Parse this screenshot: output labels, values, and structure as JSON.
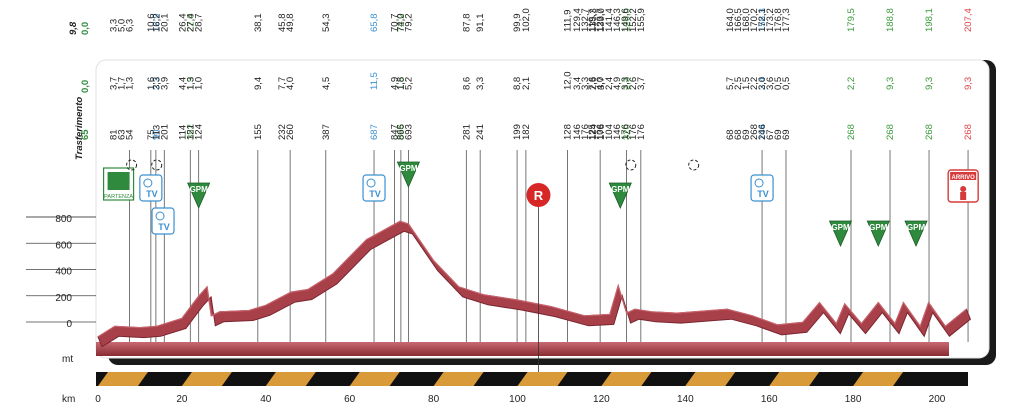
{
  "chart_data": {
    "type": "area",
    "title": "",
    "xlabel": "km",
    "ylabel": "mt",
    "xlim": [
      0,
      207.4
    ],
    "ylim": [
      0,
      1000
    ],
    "x_ticks": [
      "0",
      "20",
      "40",
      "60",
      "80",
      "100",
      "120",
      "140",
      "160",
      "180",
      "200"
    ],
    "y_ticks": [
      "0",
      "200",
      "400",
      "600",
      "800"
    ],
    "header_labels": {
      "first_col_bottom": "65",
      "first_col_mid": "0,0",
      "first_col_top": "0,0",
      "col0_top": "9,8",
      "col0_label": "Trasferimento"
    },
    "columns": [
      {
        "km": 7.5,
        "color": "#222",
        "top": [
          "3,3",
          "5,0",
          "6,3"
        ],
        "mid": [
          "3,7",
          "1,7",
          "1,3"
        ],
        "bot": [
          "81",
          "63",
          "54"
        ]
      },
      {
        "km": 12.6,
        "color": "#222",
        "top": [
          "10,6"
        ],
        "mid": [
          "1,6"
        ],
        "bot": [
          "75"
        ]
      },
      {
        "km": 13.8,
        "color": "#3a8fd0",
        "top": [
          "12,9"
        ],
        "mid": [
          "2,3"
        ],
        "bot": [
          "90"
        ]
      },
      {
        "km": 15.8,
        "color": "#222",
        "top": [
          "16,2",
          "20,1"
        ],
        "mid": [
          "3,3",
          "3,9"
        ],
        "bot": [
          "113",
          "201"
        ]
      },
      {
        "km": 22.0,
        "color": "#3a9a3a",
        "top": [
          "22,0"
        ],
        "mid": [
          "1,9"
        ],
        "bot": [
          "352"
        ]
      },
      {
        "km": 24.0,
        "color": "#222",
        "top": [
          "26,4",
          "27,4",
          "28,7"
        ],
        "mid": [
          "4,4",
          "1,3",
          "1,0"
        ],
        "bot": [
          "114",
          "121",
          "124"
        ]
      },
      {
        "km": 38.1,
        "color": "#222",
        "top": [
          "38,1"
        ],
        "mid": [
          "9,4"
        ],
        "bot": [
          "155"
        ]
      },
      {
        "km": 45.8,
        "color": "#222",
        "top": [
          "45,8",
          "49,8"
        ],
        "mid": [
          "7,7",
          "4,0"
        ],
        "bot": [
          "232",
          "260"
        ]
      },
      {
        "km": 54.3,
        "color": "#222",
        "top": [
          "54,3"
        ],
        "mid": [
          "4,5"
        ],
        "bot": [
          "387"
        ]
      },
      {
        "km": 65.8,
        "color": "#3a8fd0",
        "top": [
          "65,8"
        ],
        "mid": [
          "11,5"
        ],
        "bot": [
          "687"
        ]
      },
      {
        "km": 70.7,
        "color": "#222",
        "top": [
          "70,7"
        ],
        "mid": [
          "4,9"
        ],
        "bot": [
          "847"
        ]
      },
      {
        "km": 72.2,
        "color": "#3a9a3a",
        "top": [
          "72,2"
        ],
        "mid": [
          "1,5"
        ],
        "bot": [
          "896"
        ]
      },
      {
        "km": 74.0,
        "color": "#222",
        "top": [
          "74,0",
          "79,2"
        ],
        "mid": [
          "1,8",
          "5,2"
        ],
        "bot": [
          "865",
          "693"
        ]
      },
      {
        "km": 87.8,
        "color": "#222",
        "top": [
          "87,8"
        ],
        "mid": [
          "8,6"
        ],
        "bot": [
          "281"
        ]
      },
      {
        "km": 91.1,
        "color": "#222",
        "top": [
          "91,1"
        ],
        "mid": [
          "3,3"
        ],
        "bot": [
          "241"
        ]
      },
      {
        "km": 99.9,
        "color": "#222",
        "top": [
          "99,9"
        ],
        "mid": [
          "8,8"
        ],
        "bot": [
          "199"
        ]
      },
      {
        "km": 102.0,
        "color": "#222",
        "top": [
          "102,0"
        ],
        "mid": [
          "2,1"
        ],
        "bot": [
          "182"
        ]
      },
      {
        "km": 111.9,
        "color": "#222",
        "top": [
          "111,9"
        ],
        "mid": [
          "12,0"
        ],
        "bot": [
          "128"
        ]
      },
      {
        "km": 119.7,
        "color": "#222",
        "top": [
          "119,7",
          "123,7"
        ],
        "mid": [
          "7,6",
          "4,0"
        ],
        "bot": [
          "125",
          "106"
        ]
      },
      {
        "km": 126.0,
        "color": "#3a9a3a",
        "top": [
          "126,0"
        ],
        "mid": [
          "2,3"
        ],
        "bot": [
          "320"
        ]
      },
      {
        "km": 129.4,
        "color": "#222",
        "top": [
          "129,4",
          "132,7",
          "135,3",
          "139,0",
          "141,4",
          "146,3",
          "149,6",
          "152,2",
          "155,9"
        ],
        "mid": [
          "3,4",
          "3,3",
          "2,6",
          "3,7",
          "2,4",
          "4,9",
          "3,3",
          "2,6",
          "3,7"
        ],
        "bot": [
          "146",
          "176",
          "124",
          "176",
          "104",
          "146",
          "176",
          "176",
          "176"
        ]
      },
      {
        "km": 158.3,
        "color": "#3a8fd0",
        "top": [
          "158,3"
        ],
        "mid": [
          "2,4"
        ],
        "bot": [
          "104"
        ]
      },
      {
        "km": 164.0,
        "color": "#222",
        "top": [
          "164,0",
          "166,5",
          "168,0",
          "170,2",
          "172,1",
          "173,2",
          "176,8",
          "177,3"
        ],
        "mid": [
          "5,7",
          "2,5",
          "1,5",
          "2,2",
          "3,0",
          "3,6",
          "0,5",
          "0,5"
        ],
        "bot": [
          "68",
          "68",
          "69",
          "268",
          "246",
          "67",
          "69",
          "69"
        ]
      },
      {
        "km": 179.5,
        "color": "#3a9a3a",
        "top": [
          "179,5"
        ],
        "mid": [
          "2,2"
        ],
        "bot": [
          "268"
        ]
      },
      {
        "km": 188.8,
        "color": "#3a9a3a",
        "top": [
          "188,8"
        ],
        "mid": [
          "9,3"
        ],
        "bot": [
          "268"
        ]
      },
      {
        "km": 198.1,
        "color": "#3a9a3a",
        "top": [
          "198,1"
        ],
        "mid": [
          "9,3"
        ],
        "bot": [
          "268"
        ]
      },
      {
        "km": 207.4,
        "color": "#e04545",
        "top": [
          "207,4"
        ],
        "mid": [
          "9,3"
        ],
        "bot": [
          "268"
        ]
      }
    ],
    "profile": {
      "x": [
        0,
        4,
        10,
        14,
        20,
        24,
        26,
        27,
        29,
        36,
        40,
        46,
        50,
        56,
        64,
        72,
        74,
        80,
        86,
        92,
        100,
        108,
        116,
        122,
        124,
        126,
        128,
        132,
        138,
        146,
        150,
        156,
        162,
        168,
        172,
        176,
        178,
        182,
        186,
        190,
        192,
        196,
        198,
        202,
        207
      ],
      "y": [
        40,
        120,
        110,
        120,
        180,
        350,
        420,
        200,
        230,
        240,
        280,
        380,
        400,
        520,
        780,
        920,
        900,
        620,
        420,
        360,
        320,
        270,
        200,
        210,
        430,
        220,
        250,
        230,
        220,
        240,
        250,
        200,
        130,
        150,
        300,
        140,
        290,
        140,
        300,
        140,
        300,
        120,
        300,
        120,
        250
      ]
    },
    "markers": [
      {
        "type": "start",
        "km": 3,
        "label": "PARTENZA"
      },
      {
        "type": "tv",
        "km": 12.6,
        "label": "TV"
      },
      {
        "type": "tv",
        "km": 15.5,
        "label": "TV"
      },
      {
        "type": "gpm",
        "km": 24.0,
        "label": "GPM"
      },
      {
        "type": "tv",
        "km": 65.8,
        "label": "TV"
      },
      {
        "type": "gpm",
        "km": 74.0,
        "label": "GPM"
      },
      {
        "type": "feed",
        "km": 105.0,
        "label": "R"
      },
      {
        "type": "gpm",
        "km": 124.5,
        "label": "GPM"
      },
      {
        "type": "tv",
        "km": 158.3,
        "label": "TV"
      },
      {
        "type": "gpm",
        "km": 177.0,
        "label": "GPM"
      },
      {
        "type": "gpm",
        "km": 186.0,
        "label": "GPM"
      },
      {
        "type": "gpm",
        "km": 195.0,
        "label": "GPM"
      },
      {
        "type": "finish",
        "km": 206.0,
        "label": "ARRIVO"
      }
    ],
    "clock_marks": [
      8,
      14,
      127,
      142
    ]
  }
}
